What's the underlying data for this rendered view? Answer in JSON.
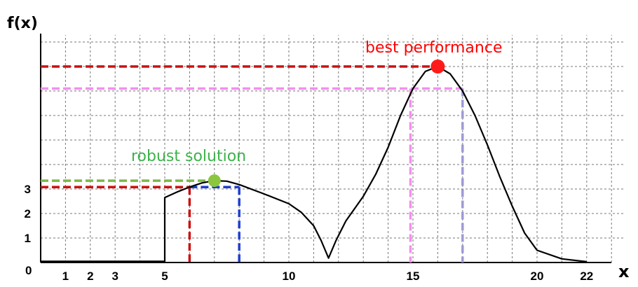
{
  "chart_data": {
    "type": "line",
    "xlabel": "x",
    "ylabel": "f(x)",
    "x_ticks": [
      {
        "value": 1,
        "label": "1"
      },
      {
        "value": 2,
        "label": "2"
      },
      {
        "value": 3,
        "label": "3"
      },
      {
        "value": 5,
        "label": "5"
      },
      {
        "value": 10,
        "label": "10"
      },
      {
        "value": 15,
        "label": "15"
      },
      {
        "value": 20,
        "label": "20"
      },
      {
        "value": 22,
        "label": "22"
      }
    ],
    "y_ticks": [
      {
        "value": 1,
        "label": "1"
      },
      {
        "value": 2,
        "label": "2"
      },
      {
        "value": 3,
        "label": "3"
      }
    ],
    "origin_label": "0",
    "xlim": [
      0,
      23.5
    ],
    "ylim": [
      0,
      9
    ],
    "grid": true,
    "curve": {
      "color": "#000000",
      "points": [
        [
          0,
          0.05
        ],
        [
          5,
          0.05
        ],
        [
          5,
          2.65
        ],
        [
          5.5,
          2.88
        ],
        [
          6,
          3.08
        ],
        [
          6.5,
          3.25
        ],
        [
          7,
          3.34
        ],
        [
          7.5,
          3.32
        ],
        [
          8,
          3.18
        ],
        [
          9,
          2.8
        ],
        [
          10,
          2.4
        ],
        [
          10.5,
          2.05
        ],
        [
          11,
          1.5
        ],
        [
          11.3,
          0.9
        ],
        [
          11.6,
          0.18
        ],
        [
          11.9,
          0.9
        ],
        [
          12.3,
          1.7
        ],
        [
          13,
          2.7
        ],
        [
          13.5,
          3.6
        ],
        [
          14,
          4.7
        ],
        [
          14.5,
          6.0
        ],
        [
          15,
          7.1
        ],
        [
          15.5,
          7.8
        ],
        [
          16,
          8.0
        ],
        [
          16.5,
          7.7
        ],
        [
          17,
          7.0
        ],
        [
          17.5,
          6.0
        ],
        [
          18,
          4.8
        ],
        [
          18.5,
          3.5
        ],
        [
          19,
          2.3
        ],
        [
          19.5,
          1.2
        ],
        [
          20,
          0.5
        ],
        [
          21,
          0.15
        ],
        [
          22,
          0.03
        ]
      ]
    },
    "annotations": [
      {
        "label": "best performance",
        "x": 16,
        "y": 8.0,
        "color": "#ff0000"
      },
      {
        "label": "robust solution",
        "x": 7,
        "y": 3.34,
        "color": "#3db24a"
      }
    ],
    "guides": [
      {
        "name": "best-level",
        "color": "#cc1111",
        "from": [
          0,
          8.0
        ],
        "to": [
          16,
          8.0
        ]
      },
      {
        "name": "pink-level",
        "color": "#f48ef0",
        "from": [
          0,
          7.1
        ],
        "to": [
          17,
          7.1
        ]
      },
      {
        "name": "pink-drop",
        "color": "#f48ef0",
        "from": [
          14.9,
          7.1
        ],
        "to": [
          14.9,
          0
        ]
      },
      {
        "name": "lavender-drop",
        "color": "#9d9ad8",
        "from": [
          17,
          7.1
        ],
        "to": [
          17,
          0
        ]
      },
      {
        "name": "robust-level",
        "color": "#7ab847",
        "from": [
          0,
          3.34
        ],
        "to": [
          7,
          3.34
        ]
      },
      {
        "name": "red-level",
        "color": "#cc1111",
        "from": [
          0,
          3.08
        ],
        "to": [
          6,
          3.08
        ]
      },
      {
        "name": "red-drop",
        "color": "#cc1111",
        "from": [
          6,
          3.08
        ],
        "to": [
          6,
          0
        ]
      },
      {
        "name": "blue-level",
        "color": "#1f3fcc",
        "from": [
          6,
          3.08
        ],
        "to": [
          8,
          3.08
        ]
      },
      {
        "name": "blue-drop",
        "color": "#1f3fcc",
        "from": [
          8,
          3.08
        ],
        "to": [
          8,
          0
        ]
      }
    ]
  }
}
